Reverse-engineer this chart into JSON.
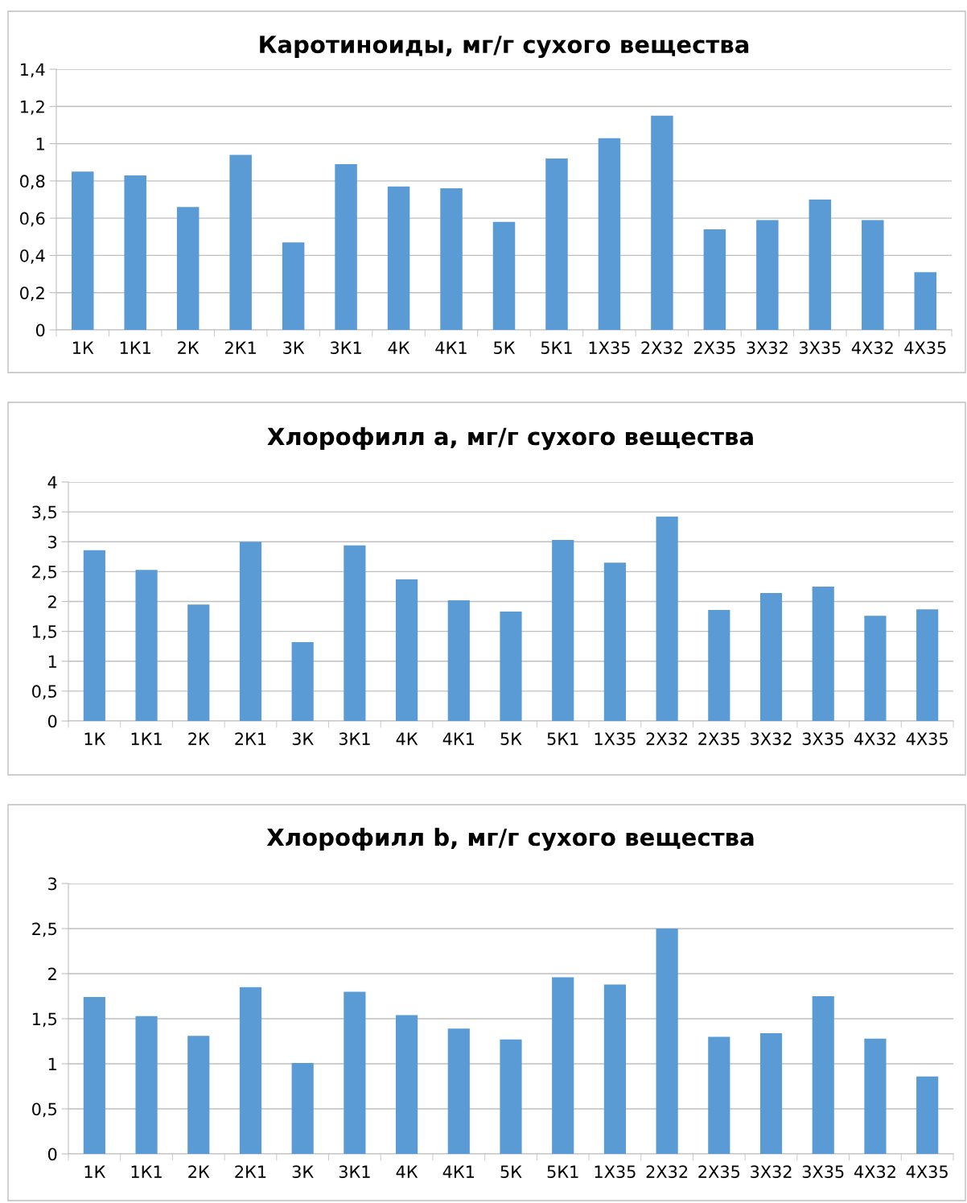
{
  "chart_data": [
    {
      "type": "bar",
      "title": "Каротиноиды, мг/г сухого вещества",
      "categories": [
        "1К",
        "1К1",
        "2К",
        "2К1",
        "3К",
        "3К1",
        "4К",
        "4К1",
        "5К",
        "5К1",
        "1Х35",
        "2Х32",
        "2Х35",
        "3Х32",
        "3Х35",
        "4Х32",
        "4Х35"
      ],
      "values": [
        0.85,
        0.83,
        0.66,
        0.94,
        0.47,
        0.89,
        0.77,
        0.76,
        0.58,
        0.92,
        1.03,
        1.15,
        0.54,
        0.59,
        0.7,
        0.59,
        0.31
      ],
      "color": "#5b9bd5",
      "ylim": [
        0,
        1.4
      ],
      "yticks": [
        0,
        {
          "value": 0.2,
          "label": "0,2"
        },
        {
          "value": 0.4,
          "label": "0,4"
        },
        {
          "value": 0.6,
          "label": "0,6"
        },
        {
          "value": 0.8,
          "label": "0,8"
        },
        1,
        {
          "value": 1.2,
          "label": "1,2"
        },
        {
          "value": 1.4,
          "label": "1,4"
        }
      ],
      "grid": "y",
      "legend": false
    },
    {
      "type": "bar",
      "title": "Хлорофилл a, мг/г сухого вещества",
      "categories": [
        "1К",
        "1К1",
        "2К",
        "2К1",
        "3К",
        "3К1",
        "4К",
        "4К1",
        "5К",
        "5К1",
        "1Х35",
        "2Х32",
        "2Х35",
        "3Х32",
        "3Х35",
        "4Х32",
        "4Х35"
      ],
      "values": [
        2.86,
        2.53,
        1.95,
        3.0,
        1.32,
        2.94,
        2.37,
        2.02,
        1.83,
        3.03,
        2.65,
        3.42,
        1.86,
        2.14,
        2.25,
        1.76,
        1.87
      ],
      "color": "#5b9bd5",
      "ylim": [
        0,
        4
      ],
      "yticks": [
        0,
        {
          "value": 0.5,
          "label": "0,5"
        },
        1,
        {
          "value": 1.5,
          "label": "1,5"
        },
        2,
        {
          "value": 2.5,
          "label": "2,5"
        },
        3,
        {
          "value": 3.5,
          "label": "3,5"
        },
        4
      ],
      "grid": "y",
      "legend": false
    },
    {
      "type": "bar",
      "title": "Хлорофилл b, мг/г сухого вещества",
      "categories": [
        "1К",
        "1К1",
        "2К",
        "2К1",
        "3К",
        "3К1",
        "4К",
        "4К1",
        "5К",
        "5К1",
        "1Х35",
        "2Х32",
        "2Х35",
        "3Х32",
        "3Х35",
        "4Х32",
        "4Х35"
      ],
      "values": [
        1.74,
        1.53,
        1.31,
        1.85,
        1.01,
        1.8,
        1.54,
        1.39,
        1.27,
        1.96,
        1.88,
        2.5,
        1.3,
        1.34,
        1.75,
        1.28,
        0.86
      ],
      "color": "#5b9bd5",
      "ylim": [
        0,
        3
      ],
      "yticks": [
        0,
        {
          "value": 0.5,
          "label": "0,5"
        },
        1,
        {
          "value": 1.5,
          "label": "1,5"
        },
        2,
        {
          "value": 2.5,
          "label": "2,5"
        },
        3
      ],
      "grid": "y",
      "legend": false
    }
  ]
}
